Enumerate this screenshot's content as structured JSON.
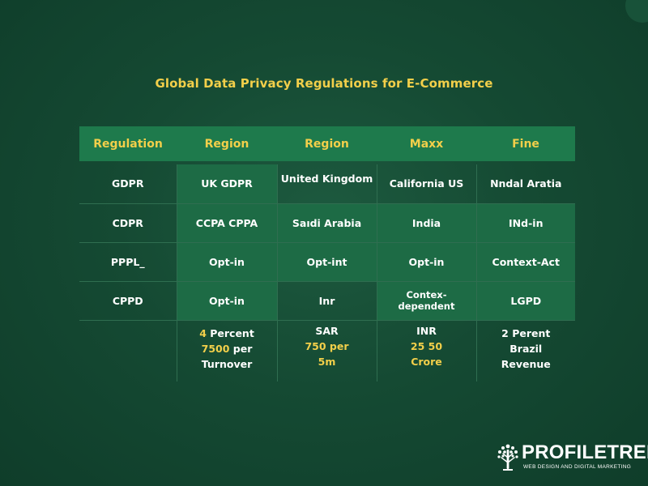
{
  "title": "Global Data Privacy Regulations for E-Commerce",
  "table": {
    "headers": [
      "Regulation",
      "Region",
      "Region",
      "Maxx",
      "Fine"
    ],
    "rows": [
      [
        "GDPR",
        "UK GDPR",
        "United Kingdom",
        "California US",
        "Nndal Aratia"
      ],
      [
        "CDPR",
        "CCPA CPPA",
        "Saıdi Arabia",
        "India",
        "INd-in"
      ],
      [
        "PPPL_",
        "Opt-in",
        "Opt-int",
        "Opt-in",
        "Context-Act"
      ],
      [
        "CPPD",
        "Opt-in",
        "Inr",
        "Contex-dependent",
        "LGPD"
      ]
    ],
    "footer": {
      "c2": {
        "l1": "4",
        "l1b": " Percent",
        "l2": "7500",
        "l2b": " per",
        "l3": "Turnover"
      },
      "c3": {
        "l1": "SAR",
        "l2": "750 per",
        "l3": "5m"
      },
      "c4": {
        "l1": "INR",
        "l2": "25 50",
        "l3": "Crore"
      },
      "c5": {
        "l1": "2 Perent",
        "l2": "Brazil",
        "l3": "Revenue"
      }
    }
  },
  "logo": {
    "name": "PROFILETREE",
    "tagline": "WEB DESIGN AND DIGITAL MARKETING",
    "icon": "tree-icon"
  },
  "colors": {
    "background": "#154a33",
    "header_bg": "#1e7a4c",
    "accent": "#f2cf4a"
  }
}
